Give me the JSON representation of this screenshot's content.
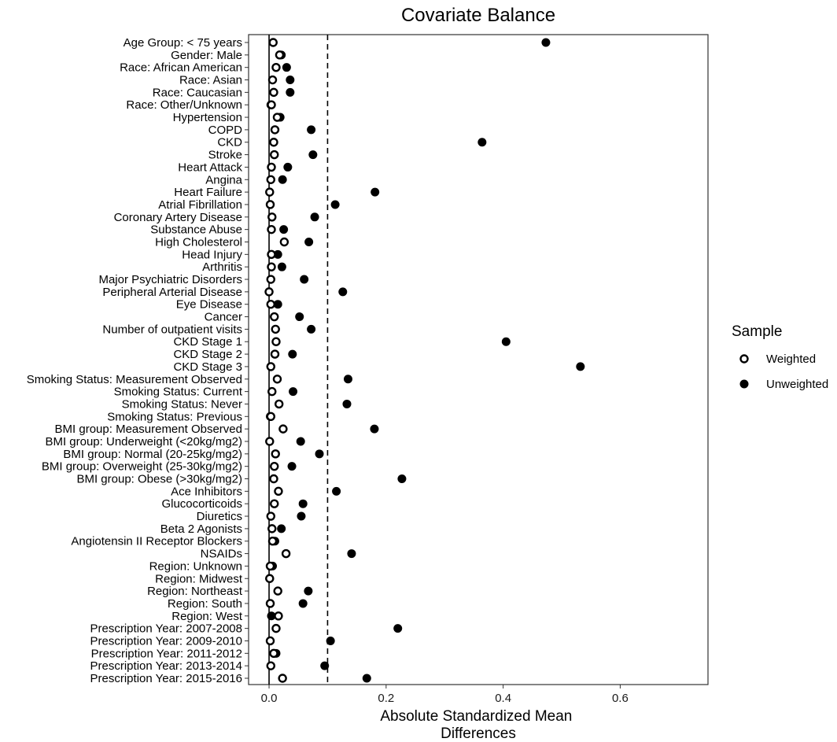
{
  "chart_data": {
    "type": "scatter",
    "title": "Covariate Balance",
    "xlabel_lines": [
      "Absolute Standardized Mean",
      "Differences"
    ],
    "ylabel": "",
    "xlim": [
      -0.035,
      0.75
    ],
    "xticks": [
      0.0,
      0.2,
      0.4,
      0.6
    ],
    "xtick_labels": [
      "0.0",
      "0.2",
      "0.4",
      "0.6"
    ],
    "reference_lines": {
      "solid_x": 0.0,
      "dashed_x": 0.1
    },
    "grid": false,
    "legend": {
      "title": "Sample",
      "placement": "right",
      "entries": [
        {
          "name": "Weighted",
          "marker": "open-circle"
        },
        {
          "name": "Unweighted",
          "marker": "filled-circle"
        }
      ]
    },
    "categories": [
      "Age Group: < 75 years",
      "Gender: Male",
      "Race: African American",
      "Race: Asian",
      "Race: Caucasian",
      "Race: Other/Unknown",
      "Hypertension",
      "COPD",
      "CKD",
      "Stroke",
      "Heart Attack",
      "Angina",
      "Heart Failure",
      "Atrial Fibrillation",
      "Coronary Artery Disease",
      "Substance Abuse",
      "High Cholesterol",
      "Head Injury",
      "Arthritis",
      "Major Psychiatric Disorders",
      "Peripheral Arterial Disease",
      "Eye Disease",
      "Cancer",
      "Number of outpatient visits",
      "CKD Stage 1",
      "CKD Stage 2",
      "CKD Stage 3",
      "Smoking Status: Measurement Observed",
      "Smoking Status: Current",
      "Smoking Status: Never",
      "Smoking Status: Previous",
      "BMI group: Measurement Observed",
      "BMI group: Underweight (<20kg/mg2)",
      "BMI group: Normal (20-25kg/mg2)",
      "BMI group: Overweight (25-30kg/mg2)",
      "BMI group: Obese (>30kg/mg2)",
      "Ace Inhibitors",
      "Glucocorticoids",
      "Diuretics",
      "Beta 2 Agonists",
      "Angiotensin II Receptor Blockers",
      "NSAIDs",
      "Region: Unknown",
      "Region: Midwest",
      "Region: Northeast",
      "Region: South",
      "Region: West",
      "Prescription Year: 2007-2008",
      "Prescription Year: 2009-2010",
      "Prescription Year: 2011-2012",
      "Prescription Year: 2013-2014",
      "Prescription Year: 2015-2016"
    ],
    "series": [
      {
        "name": "Unweighted",
        "values": [
          0.473,
          0.021,
          0.03,
          0.036,
          0.036,
          0.003,
          0.019,
          0.072,
          0.364,
          0.075,
          0.032,
          0.023,
          0.181,
          0.113,
          0.078,
          0.025,
          0.068,
          0.015,
          0.022,
          0.06,
          0.126,
          0.015,
          0.052,
          0.072,
          0.405,
          0.04,
          0.532,
          0.135,
          0.041,
          0.133,
          0.002,
          0.18,
          0.054,
          0.086,
          0.039,
          0.227,
          0.115,
          0.058,
          0.055,
          0.021,
          0.01,
          0.141,
          0.006,
          0.001,
          0.067,
          0.058,
          0.004,
          0.22,
          0.105,
          0.012,
          0.095,
          0.167
        ]
      },
      {
        "name": "Weighted",
        "values": [
          0.007,
          0.018,
          0.012,
          0.006,
          0.008,
          0.004,
          0.014,
          0.01,
          0.008,
          0.009,
          0.004,
          0.003,
          0.001,
          0.002,
          0.005,
          0.004,
          0.026,
          0.004,
          0.004,
          0.003,
          0.0,
          0.003,
          0.009,
          0.011,
          0.012,
          0.01,
          0.003,
          0.014,
          0.005,
          0.017,
          0.003,
          0.024,
          0.001,
          0.011,
          0.009,
          0.008,
          0.016,
          0.009,
          0.003,
          0.005,
          0.006,
          0.029,
          0.002,
          0.001,
          0.015,
          0.002,
          0.016,
          0.012,
          0.002,
          0.008,
          0.003,
          0.023
        ]
      }
    ]
  }
}
